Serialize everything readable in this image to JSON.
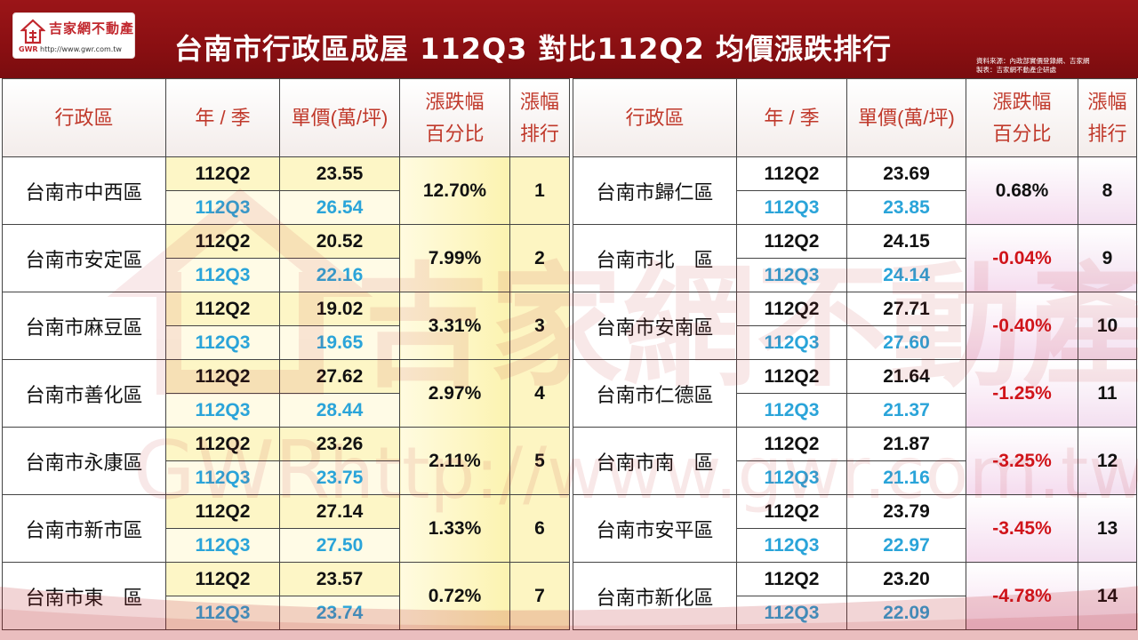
{
  "logo": {
    "name": "吉家網不動產",
    "gwr": "GWR",
    "url": "http://www.gwr.com.tw"
  },
  "title": "台南市行政區成屋 112Q3 對比112Q2 均價漲跌排行",
  "source": {
    "line1": "資料來源：內政部實價登錄網、吉家網",
    "line2": "製表：吉家網不動產企研處"
  },
  "watermark": {
    "text": "吉家網不動產",
    "gwr": "GWR",
    "url": "http://www.gwr.com.tw"
  },
  "headers": {
    "district": "行政區",
    "period": "年 / 季",
    "unit_price": "單價(萬/坪)",
    "pct_line1": "漲跌幅",
    "pct_line2": "百分比",
    "rank_line1": "漲幅",
    "rank_line2": "排行"
  },
  "left_rows": [
    {
      "district": "台南市中西區",
      "q2_label": "112Q2",
      "q2_price": "23.55",
      "q3_label": "112Q3",
      "q3_price": "26.54",
      "pct": "12.70%",
      "rank": "1",
      "sign": "pos"
    },
    {
      "district": "台南市安定區",
      "q2_label": "112Q2",
      "q2_price": "20.52",
      "q3_label": "112Q3",
      "q3_price": "22.16",
      "pct": "7.99%",
      "rank": "2",
      "sign": "pos"
    },
    {
      "district": "台南市麻豆區",
      "q2_label": "112Q2",
      "q2_price": "19.02",
      "q3_label": "112Q3",
      "q3_price": "19.65",
      "pct": "3.31%",
      "rank": "3",
      "sign": "pos"
    },
    {
      "district": "台南市善化區",
      "q2_label": "112Q2",
      "q2_price": "27.62",
      "q3_label": "112Q3",
      "q3_price": "28.44",
      "pct": "2.97%",
      "rank": "4",
      "sign": "pos"
    },
    {
      "district": "台南市永康區",
      "q2_label": "112Q2",
      "q2_price": "23.26",
      "q3_label": "112Q3",
      "q3_price": "23.75",
      "pct": "2.11%",
      "rank": "5",
      "sign": "pos"
    },
    {
      "district": "台南市新市區",
      "q2_label": "112Q2",
      "q2_price": "27.14",
      "q3_label": "112Q3",
      "q3_price": "27.50",
      "pct": "1.33%",
      "rank": "6",
      "sign": "pos"
    },
    {
      "district": "台南市東　區",
      "q2_label": "112Q2",
      "q2_price": "23.57",
      "q3_label": "112Q3",
      "q3_price": "23.74",
      "pct": "0.72%",
      "rank": "7",
      "sign": "pos"
    }
  ],
  "right_rows": [
    {
      "district": "台南市歸仁區",
      "q2_label": "112Q2",
      "q2_price": "23.69",
      "q3_label": "112Q3",
      "q3_price": "23.85",
      "pct": "0.68%",
      "rank": "8",
      "sign": "pos"
    },
    {
      "district": "台南市北　區",
      "q2_label": "112Q2",
      "q2_price": "24.15",
      "q3_label": "112Q3",
      "q3_price": "24.14",
      "pct": "-0.04%",
      "rank": "9",
      "sign": "neg"
    },
    {
      "district": "台南市安南區",
      "q2_label": "112Q2",
      "q2_price": "27.71",
      "q3_label": "112Q3",
      "q3_price": "27.60",
      "pct": "-0.40%",
      "rank": "10",
      "sign": "neg"
    },
    {
      "district": "台南市仁德區",
      "q2_label": "112Q2",
      "q2_price": "21.64",
      "q3_label": "112Q3",
      "q3_price": "21.37",
      "pct": "-1.25%",
      "rank": "11",
      "sign": "neg"
    },
    {
      "district": "台南市南　區",
      "q2_label": "112Q2",
      "q2_price": "21.87",
      "q3_label": "112Q3",
      "q3_price": "21.16",
      "pct": "-3.25%",
      "rank": "12",
      "sign": "neg"
    },
    {
      "district": "台南市安平區",
      "q2_label": "112Q2",
      "q2_price": "23.79",
      "q3_label": "112Q3",
      "q3_price": "22.97",
      "pct": "-3.45%",
      "rank": "13",
      "sign": "neg"
    },
    {
      "district": "台南市新化區",
      "q2_label": "112Q2",
      "q2_price": "23.20",
      "q3_label": "112Q3",
      "q3_price": "22.09",
      "pct": "-4.78%",
      "rank": "14",
      "sign": "neg"
    }
  ],
  "colors": {
    "header_bg": "#8a0f12",
    "header_text": "#c0392b",
    "q3_text": "#2aa4d9",
    "negative": "#d0141a",
    "left_highlight": "#fdf6c6",
    "right_highlight": "#f5dcef"
  }
}
